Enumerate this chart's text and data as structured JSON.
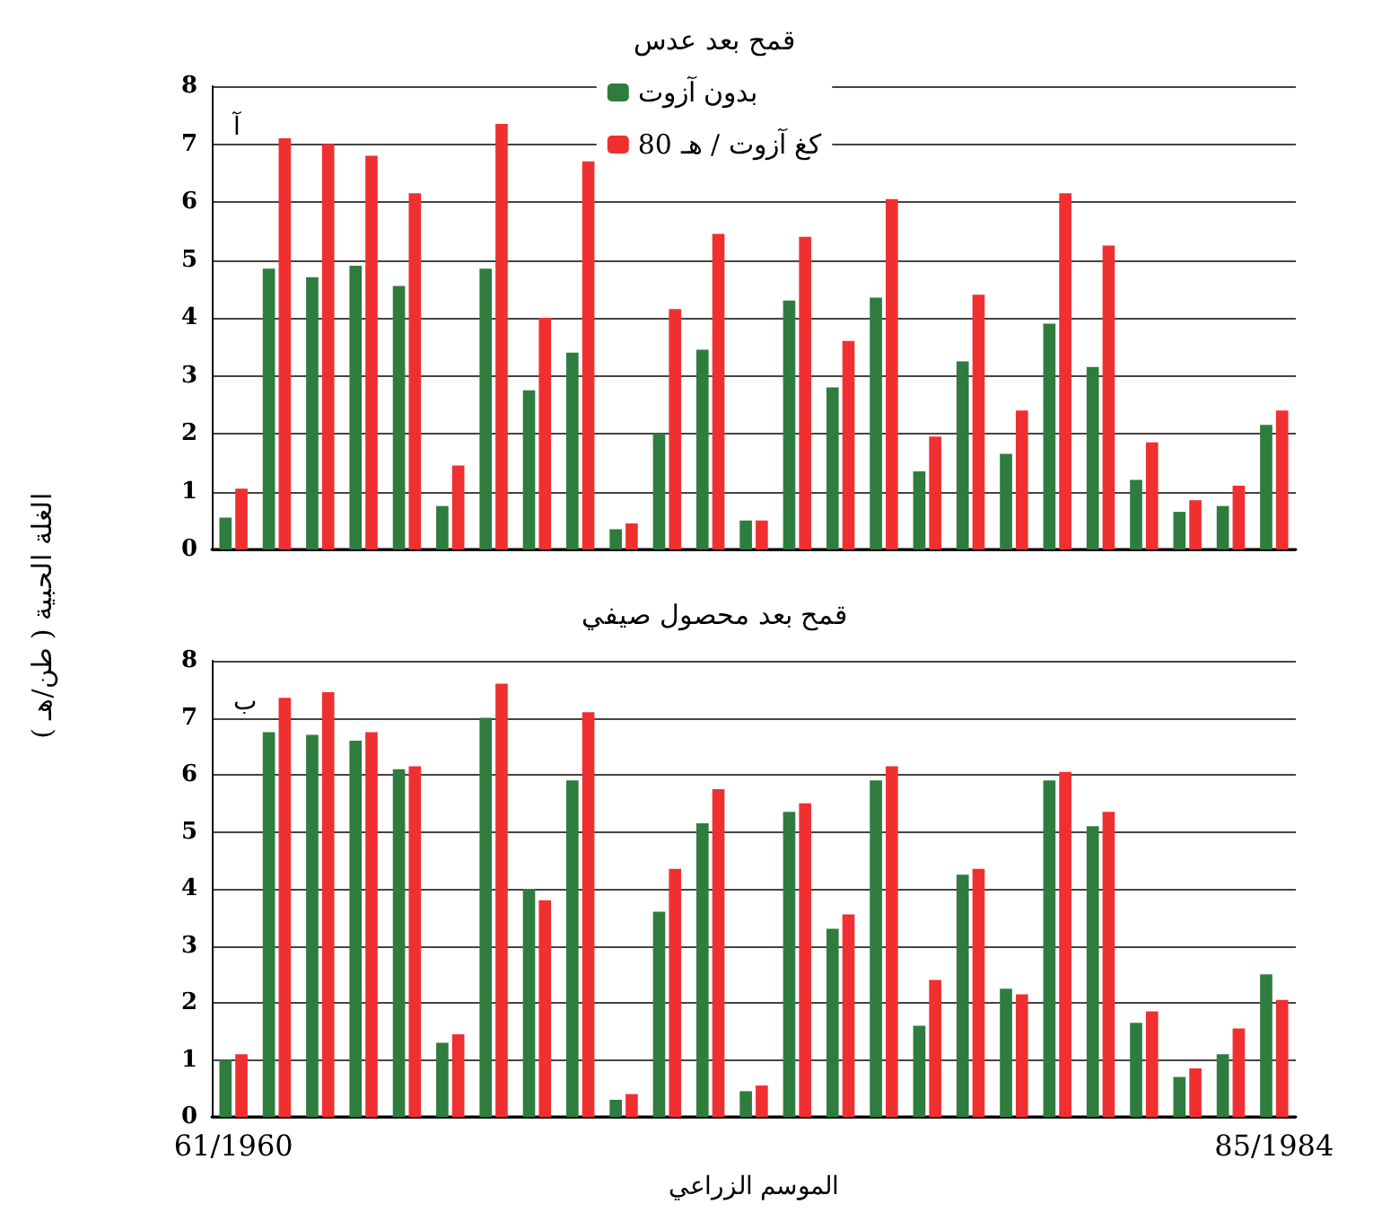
{
  "chart_data": [
    {
      "type": "bar",
      "title": "قمح بعد عدس",
      "ylabel": "الغلة الحبية ( طن/هـ )",
      "annotations": [
        "آ"
      ],
      "categories": [
        null,
        null,
        null,
        null,
        null,
        null,
        null,
        null,
        null,
        null,
        null,
        null,
        null,
        null,
        null,
        null,
        null,
        null,
        null,
        null,
        null,
        null,
        null,
        null,
        null
      ],
      "series": [
        {
          "name": "بدون آزوت",
          "color": "#2e7d3e",
          "values": [
            0.55,
            4.85,
            4.7,
            4.9,
            4.55,
            0.75,
            4.85,
            2.75,
            3.4,
            0.35,
            2.0,
            3.45,
            0.5,
            4.3,
            2.8,
            4.35,
            1.35,
            3.25,
            1.65,
            3.9,
            3.15,
            1.2,
            0.65,
            0.75,
            2.15
          ]
        },
        {
          "name": "80 كغ آزوت / هـ",
          "color": "#f03030",
          "values": [
            1.05,
            7.1,
            7.0,
            6.8,
            6.15,
            1.45,
            7.35,
            4.0,
            6.7,
            0.45,
            4.15,
            5.45,
            0.5,
            5.4,
            3.6,
            6.05,
            1.95,
            4.4,
            2.4,
            6.15,
            5.25,
            1.85,
            0.85,
            1.1,
            2.4
          ]
        }
      ],
      "ylim": [
        0,
        8
      ],
      "yticks": [
        0,
        1,
        2,
        3,
        4,
        5,
        6,
        7,
        8
      ],
      "grid": "y",
      "legend": "top",
      "tick_labels": "y"
    },
    {
      "type": "bar",
      "title": "قمح بعد محصول صيفي",
      "xlabel": "الموسم الزراعي",
      "annotations": [
        "ب"
      ],
      "categories": [
        "61/1960",
        null,
        null,
        null,
        null,
        null,
        null,
        null,
        null,
        null,
        null,
        null,
        null,
        null,
        null,
        null,
        null,
        null,
        null,
        null,
        null,
        null,
        null,
        null,
        "85/1984"
      ],
      "series": [
        {
          "color": "#2e7d3e",
          "values": [
            1.0,
            6.75,
            6.7,
            6.6,
            6.1,
            1.3,
            7.0,
            4.0,
            5.9,
            0.3,
            3.6,
            5.15,
            0.45,
            5.35,
            3.3,
            5.9,
            1.6,
            4.25,
            2.25,
            5.9,
            5.1,
            1.65,
            0.7,
            1.1,
            2.5
          ]
        },
        {
          "color": "#f03030",
          "values": [
            1.1,
            7.35,
            7.45,
            6.75,
            6.15,
            1.45,
            7.6,
            3.8,
            7.1,
            0.4,
            4.35,
            5.75,
            0.55,
            5.5,
            3.55,
            6.15,
            2.4,
            4.35,
            2.15,
            6.05,
            5.35,
            1.85,
            0.85,
            1.55,
            2.05
          ]
        }
      ],
      "ylim": [
        0,
        8
      ],
      "yticks": [
        0,
        1,
        2,
        3,
        4,
        5,
        6,
        7,
        8
      ],
      "grid": "y",
      "legend": false
    }
  ]
}
